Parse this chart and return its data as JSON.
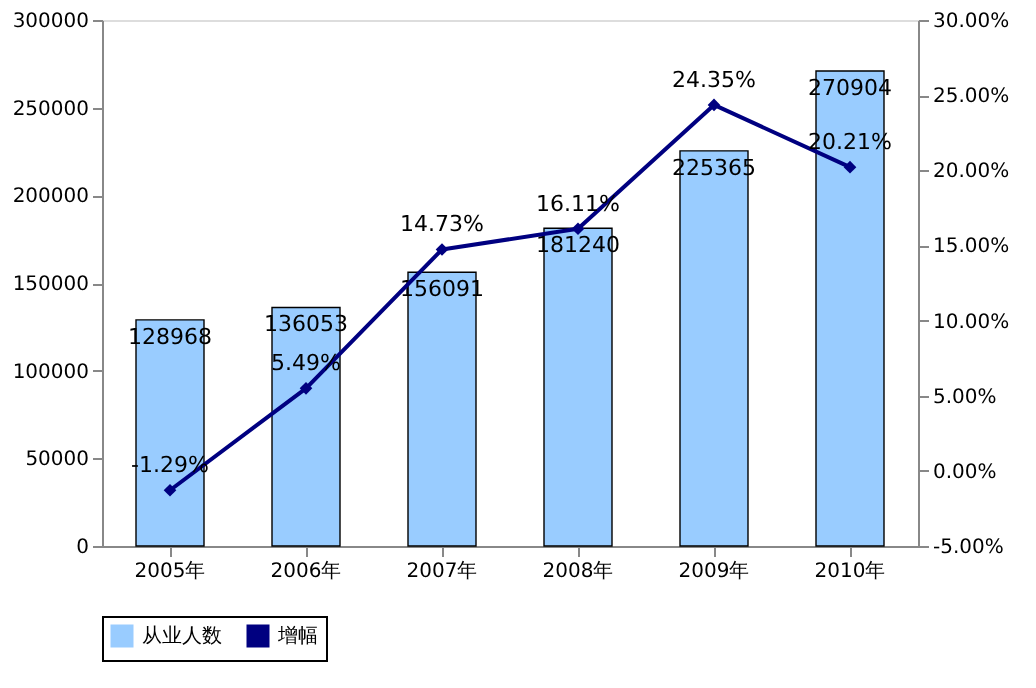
{
  "chart_data": {
    "type": "bar",
    "categories": [
      "2005年",
      "2006年",
      "2007年",
      "2008年",
      "2009年",
      "2010年"
    ],
    "series": [
      {
        "name": "从业人数",
        "color": "#99ccff",
        "values": [
          128968,
          136053,
          156091,
          181240,
          225365,
          270904
        ],
        "value_labels": [
          "128968",
          "136053",
          "156091",
          "181240",
          "225365",
          "270904"
        ]
      },
      {
        "name": "增幅",
        "type": "line",
        "axis": "y2",
        "color": "#000080",
        "marker": "diamond",
        "values": [
          -1.29,
          5.49,
          14.73,
          16.11,
          24.35,
          20.21
        ],
        "value_labels": [
          "-1.29%",
          "5.49%",
          "14.73%",
          "16.11%",
          "24.35%",
          "20.21%"
        ]
      }
    ],
    "ylim": [
      0,
      300000
    ],
    "yticks": [
      0,
      50000,
      100000,
      150000,
      200000,
      250000,
      300000
    ],
    "y2lim": [
      -5,
      30
    ],
    "y2ticks": [
      {
        "value": -5,
        "label": "-5.00%"
      },
      {
        "value": 0,
        "label": "0.00%"
      },
      {
        "value": 5,
        "label": "5.00%"
      },
      {
        "value": 10,
        "label": "10.00%"
      },
      {
        "value": 15,
        "label": "15.00%"
      },
      {
        "value": 20,
        "label": "20.00%"
      },
      {
        "value": 25,
        "label": "25.00%"
      },
      {
        "value": 30,
        "label": "30.00%"
      }
    ],
    "grid": false,
    "legend": "bottom"
  }
}
